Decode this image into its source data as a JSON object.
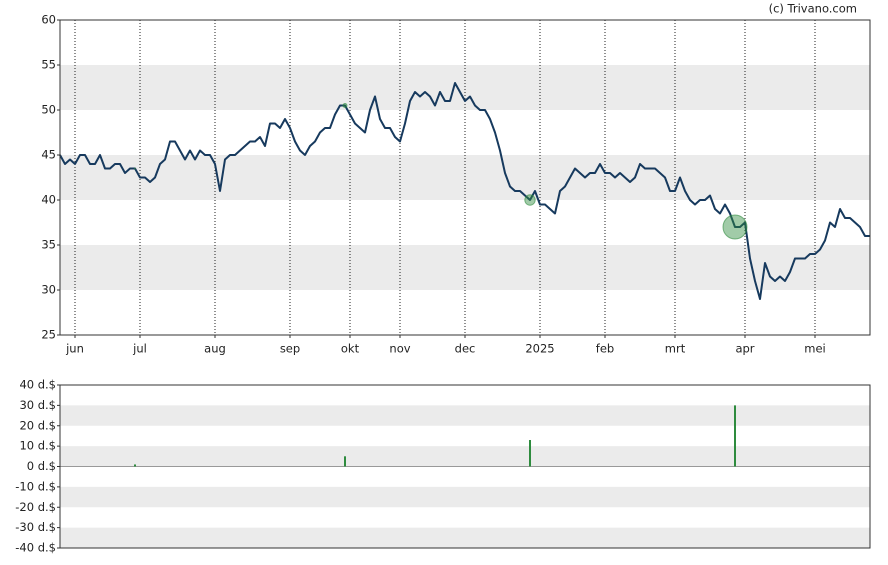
{
  "chart_data": [
    {
      "type": "line",
      "source": "(c) Trivano.com",
      "color": "#173a5e",
      "band_color": "#ebebeb",
      "grid": true,
      "ylim": [
        25,
        60
      ],
      "yticks": [
        25,
        30,
        35,
        40,
        45,
        50,
        55,
        60
      ],
      "categories": [
        null,
        null,
        null,
        "jun",
        null,
        null,
        null,
        null,
        null,
        null,
        null,
        null,
        null,
        null,
        null,
        null,
        "jul",
        null,
        null,
        null,
        null,
        null,
        null,
        null,
        null,
        null,
        null,
        null,
        null,
        null,
        null,
        "aug",
        null,
        null,
        null,
        null,
        null,
        null,
        null,
        null,
        null,
        null,
        null,
        null,
        null,
        null,
        "sep",
        null,
        null,
        null,
        null,
        null,
        null,
        null,
        null,
        null,
        null,
        null,
        "okt",
        null,
        null,
        null,
        null,
        null,
        null,
        null,
        null,
        null,
        "nov",
        null,
        null,
        null,
        null,
        null,
        null,
        null,
        null,
        null,
        null,
        null,
        null,
        "dec",
        null,
        null,
        null,
        null,
        null,
        null,
        null,
        null,
        null,
        null,
        null,
        null,
        null,
        null,
        "2025",
        null,
        null,
        null,
        null,
        null,
        null,
        null,
        null,
        null,
        null,
        null,
        null,
        "feb",
        null,
        null,
        null,
        null,
        null,
        null,
        null,
        null,
        null,
        null,
        null,
        null,
        null,
        "mrt",
        null,
        null,
        null,
        null,
        null,
        null,
        null,
        null,
        null,
        null,
        null,
        null,
        null,
        "apr",
        null,
        null,
        null,
        null,
        null,
        null,
        null,
        null,
        null,
        null,
        null,
        null,
        null,
        "mei",
        null,
        null,
        null,
        null,
        null,
        null,
        null,
        null,
        null,
        null,
        null
      ],
      "values": [
        45,
        44,
        44.5,
        44,
        45,
        45,
        44,
        44,
        45,
        43.5,
        43.5,
        44,
        44,
        43,
        43.5,
        43.5,
        42.5,
        42.5,
        42,
        42.5,
        44,
        44.5,
        46.5,
        46.5,
        45.5,
        44.5,
        45.5,
        44.5,
        45.5,
        45,
        45,
        44,
        41,
        44.5,
        45,
        45,
        45.5,
        46,
        46.5,
        46.5,
        47,
        46,
        48.5,
        48.5,
        48,
        49,
        48,
        46.5,
        45.5,
        45,
        46,
        46.5,
        47.5,
        48,
        48,
        49.5,
        50.5,
        50.5,
        49.5,
        48.5,
        48,
        47.5,
        50,
        51.5,
        49,
        48,
        48,
        47,
        46.5,
        48.5,
        51,
        52,
        51.5,
        52,
        51.5,
        50.5,
        52,
        51,
        51,
        53,
        52,
        51,
        51.5,
        50.5,
        50,
        50,
        49,
        47.5,
        45.5,
        43,
        41.5,
        41,
        41,
        40.5,
        40,
        41,
        39.5,
        39.5,
        39,
        38.5,
        41,
        41.5,
        42.5,
        43.5,
        43,
        42.5,
        43,
        43,
        44,
        43,
        43,
        42.5,
        43,
        42.5,
        42,
        42.5,
        44,
        43.5,
        43.5,
        43.5,
        43,
        42.5,
        41,
        41,
        42.5,
        41,
        40,
        39.5,
        40,
        40,
        40.5,
        39,
        38.5,
        39.5,
        38.5,
        37,
        37,
        37.5,
        33.5,
        31,
        29,
        33,
        31.5,
        31,
        31.5,
        31,
        32,
        33.5,
        33.5,
        33.5,
        34,
        34,
        34.5,
        35.5,
        37.5,
        37,
        39,
        38,
        38,
        37.5,
        37,
        36,
        36
      ]
    },
    {
      "type": "bar",
      "color": "#2e8b3e",
      "band_color": "#ebebeb",
      "ylim": [
        -40,
        40
      ],
      "yticks": [
        {
          "value": -40,
          "label": "-40 d.$"
        },
        {
          "value": -30,
          "label": "-30 d.$"
        },
        {
          "value": -20,
          "label": "-20 d.$"
        },
        {
          "value": -10,
          "label": "-10 d.$"
        },
        {
          "value": 0,
          "label": "0 d.$"
        },
        {
          "value": 10,
          "label": "10 d.$"
        },
        {
          "value": 20,
          "label": "20 d.$"
        },
        {
          "value": 30,
          "label": "30 d.$"
        },
        {
          "value": 40,
          "label": "40 d.$"
        }
      ],
      "values": [
        null,
        null,
        null,
        null,
        null,
        null,
        null,
        null,
        null,
        null,
        null,
        null,
        null,
        null,
        null,
        1,
        null,
        null,
        null,
        null,
        null,
        null,
        null,
        null,
        null,
        null,
        null,
        null,
        null,
        null,
        null,
        null,
        null,
        null,
        null,
        null,
        null,
        null,
        null,
        null,
        null,
        null,
        null,
        null,
        null,
        null,
        null,
        null,
        null,
        null,
        null,
        null,
        null,
        null,
        null,
        null,
        null,
        5,
        null,
        null,
        null,
        null,
        null,
        null,
        null,
        null,
        null,
        null,
        null,
        null,
        null,
        null,
        null,
        null,
        null,
        null,
        null,
        null,
        null,
        null,
        null,
        null,
        null,
        null,
        null,
        null,
        null,
        null,
        null,
        null,
        null,
        null,
        null,
        null,
        13,
        null,
        null,
        null,
        null,
        null,
        null,
        null,
        null,
        null,
        null,
        null,
        null,
        null,
        null,
        null,
        null,
        null,
        null,
        null,
        null,
        null,
        null,
        null,
        null,
        null,
        null,
        null,
        null,
        null,
        null,
        null,
        null,
        null,
        null,
        null,
        null,
        null,
        null,
        null,
        null,
        30,
        null,
        null,
        null,
        null,
        null,
        null,
        null,
        null,
        null,
        null,
        null,
        null,
        null,
        null,
        null,
        null,
        null,
        null,
        null,
        null,
        null,
        null,
        null,
        null,
        null,
        null,
        null
      ]
    }
  ]
}
